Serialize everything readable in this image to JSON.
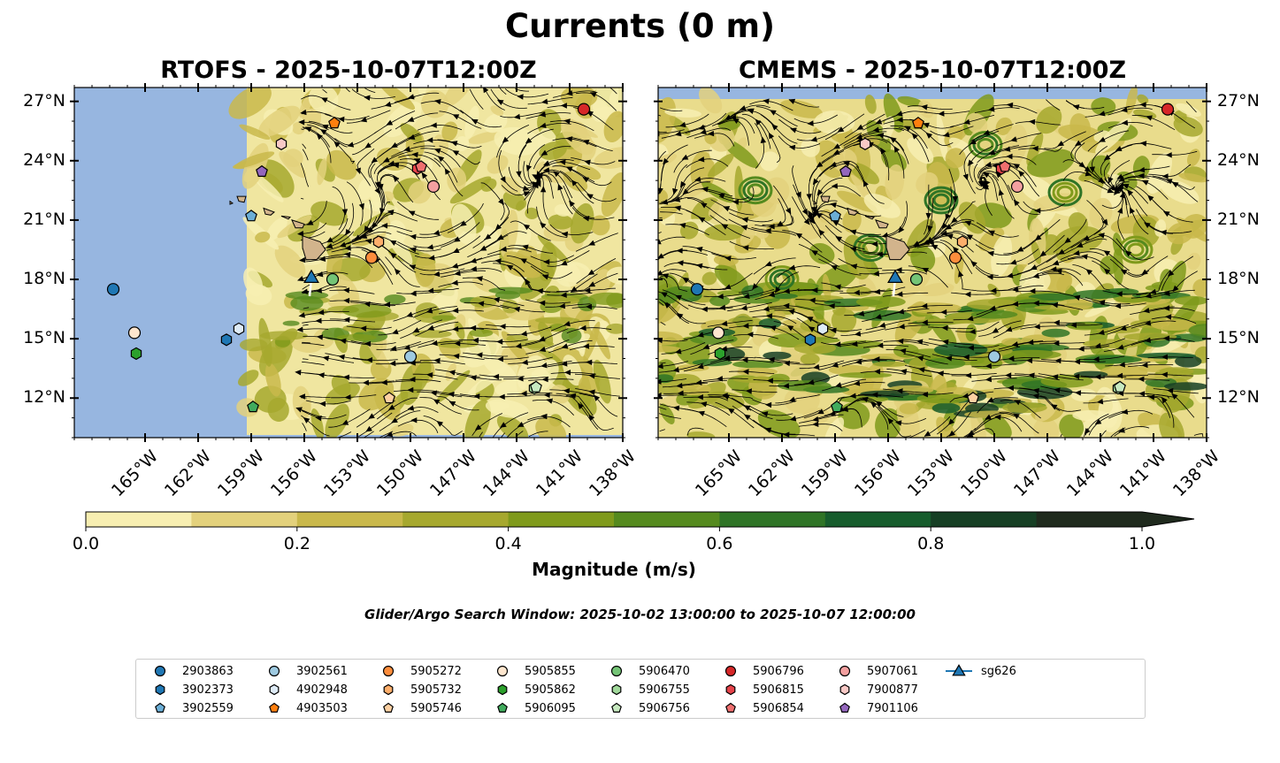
{
  "title": "Currents (0 m)",
  "panels": [
    {
      "title": "RTOFS - 2025-10-07T12:00Z"
    },
    {
      "title": "CMEMS - 2025-10-07T12:00Z"
    }
  ],
  "map": {
    "lon_range": [
      -169,
      -138
    ],
    "lat_range": [
      10,
      27.7
    ],
    "lon_ticks": [
      "165°W",
      "162°W",
      "159°W",
      "156°W",
      "153°W",
      "150°W",
      "147°W",
      "144°W",
      "141°W",
      "138°W"
    ],
    "lat_ticks": [
      "27°N",
      "24°N",
      "21°N",
      "18°N",
      "15°N",
      "12°N"
    ],
    "ocean_color": "#97b6e0",
    "land_color": "#d2b48c"
  },
  "colorbar": {
    "label": "Magnitude (m/s)",
    "ticks": [
      "0.0",
      "0.2",
      "0.4",
      "0.6",
      "0.8",
      "1.0"
    ],
    "range": [
      0.0,
      1.0
    ],
    "extend": "max",
    "colors": [
      "#f7eeb1",
      "#e3d17c",
      "#c9b84b",
      "#a6a82e",
      "#7f9a1b",
      "#558a1e",
      "#2f7426",
      "#165c2c",
      "#163f24",
      "#1f2a1d"
    ]
  },
  "search_window": "Glider/Argo Search Window: 2025-10-02 13:00:00 to 2025-10-07 12:00:00",
  "legend": [
    {
      "label": "2903863",
      "marker": "circle",
      "color": "#1f77b4"
    },
    {
      "label": "3902373",
      "marker": "hexagon",
      "color": "#1f77b4"
    },
    {
      "label": "3902559",
      "marker": "pentagon",
      "color": "#6baed6"
    },
    {
      "label": "3902561",
      "marker": "circle",
      "color": "#9ecae1"
    },
    {
      "label": "4902948",
      "marker": "hexagon",
      "color": "#deebf7"
    },
    {
      "label": "4903503",
      "marker": "pentagon",
      "color": "#ff7f0e"
    },
    {
      "label": "5905272",
      "marker": "circle",
      "color": "#fd8d3c"
    },
    {
      "label": "5905732",
      "marker": "hexagon",
      "color": "#fdae6b"
    },
    {
      "label": "5905746",
      "marker": "pentagon",
      "color": "#fdd0a2"
    },
    {
      "label": "5905855",
      "marker": "circle",
      "color": "#fee6ce"
    },
    {
      "label": "5905862",
      "marker": "hexagon",
      "color": "#2ca02c"
    },
    {
      "label": "5906095",
      "marker": "pentagon",
      "color": "#41ab5d"
    },
    {
      "label": "5906470",
      "marker": "circle",
      "color": "#74c476"
    },
    {
      "label": "5906755",
      "marker": "hexagon",
      "color": "#a1d99b"
    },
    {
      "label": "5906756",
      "marker": "pentagon",
      "color": "#c7e9c0"
    },
    {
      "label": "5906796",
      "marker": "circle",
      "color": "#d62728"
    },
    {
      "label": "5906815",
      "marker": "hexagon",
      "color": "#e6434a"
    },
    {
      "label": "5906854",
      "marker": "pentagon",
      "color": "#ef6f6f"
    },
    {
      "label": "5907061",
      "marker": "circle",
      "color": "#f4a0a0"
    },
    {
      "label": "7900877",
      "marker": "hexagon",
      "color": "#f9c9c6"
    },
    {
      "label": "7901106",
      "marker": "pentagon",
      "color": "#9467bd"
    },
    {
      "label": "sg626",
      "marker": "triangle-line",
      "color": "#1f77b4"
    }
  ],
  "floats": [
    {
      "id": "2903863",
      "lon": -166.8,
      "lat": 17.5
    },
    {
      "id": "3902373",
      "lon": -160.4,
      "lat": 14.95
    },
    {
      "id": "3902559",
      "lon": -159.0,
      "lat": 21.2
    },
    {
      "id": "3902561",
      "lon": -150.0,
      "lat": 14.1
    },
    {
      "id": "4902948",
      "lon": -159.7,
      "lat": 15.5
    },
    {
      "id": "4903503",
      "lon": -154.3,
      "lat": 25.9
    },
    {
      "id": "5905272",
      "lon": -152.2,
      "lat": 19.1
    },
    {
      "id": "5905732",
      "lon": -151.8,
      "lat": 19.9
    },
    {
      "id": "5905746",
      "lon": -151.2,
      "lat": 12.0
    },
    {
      "id": "5905855",
      "lon": -165.6,
      "lat": 15.3
    },
    {
      "id": "5905862",
      "lon": -165.5,
      "lat": 14.25
    },
    {
      "id": "5906095",
      "lon": -158.9,
      "lat": 11.55
    },
    {
      "id": "5906470",
      "lon": -154.4,
      "lat": 18.0
    },
    {
      "id": "5906755",
      "lon": -143.0,
      "lat": 12.5
    },
    {
      "id": "5906756",
      "lon": -142.9,
      "lat": 12.55
    },
    {
      "id": "5906796",
      "lon": -140.2,
      "lat": 26.6
    },
    {
      "id": "5906815",
      "lon": -149.6,
      "lat": 23.6
    },
    {
      "id": "5906854",
      "lon": -149.4,
      "lat": 23.7
    },
    {
      "id": "5907061",
      "lon": -148.7,
      "lat": 22.7
    },
    {
      "id": "7900877",
      "lon": -157.3,
      "lat": 24.85
    },
    {
      "id": "7901106",
      "lon": -158.4,
      "lat": 23.45
    },
    {
      "id": "sg626",
      "lon": -155.6,
      "lat": 18.05
    }
  ]
}
